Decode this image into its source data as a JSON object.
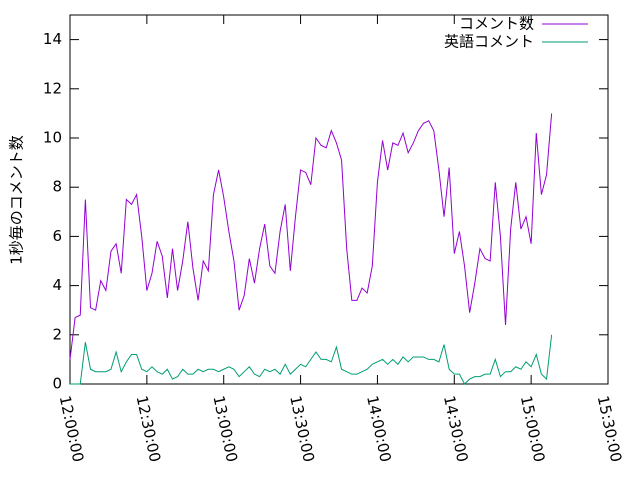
{
  "chart_data": {
    "type": "line",
    "y_label": "1秒毎のコメント数",
    "x": [
      "12:00:00",
      "12:02:00",
      "12:04:00",
      "12:06:00",
      "12:08:00",
      "12:10:00",
      "12:12:00",
      "12:14:00",
      "12:16:00",
      "12:18:00",
      "12:20:00",
      "12:22:00",
      "12:24:00",
      "12:26:00",
      "12:28:00",
      "12:30:00",
      "12:32:00",
      "12:34:00",
      "12:36:00",
      "12:38:00",
      "12:40:00",
      "12:42:00",
      "12:44:00",
      "12:46:00",
      "12:48:00",
      "12:50:00",
      "12:52:00",
      "12:54:00",
      "12:56:00",
      "12:58:00",
      "13:00:00",
      "13:02:00",
      "13:04:00",
      "13:06:00",
      "13:08:00",
      "13:10:00",
      "13:12:00",
      "13:14:00",
      "13:16:00",
      "13:18:00",
      "13:20:00",
      "13:22:00",
      "13:24:00",
      "13:26:00",
      "13:28:00",
      "13:30:00",
      "13:32:00",
      "13:34:00",
      "13:36:00",
      "13:38:00",
      "13:40:00",
      "13:42:00",
      "13:44:00",
      "13:46:00",
      "13:48:00",
      "13:50:00",
      "13:52:00",
      "13:54:00",
      "13:56:00",
      "13:58:00",
      "14:00:00",
      "14:02:00",
      "14:04:00",
      "14:06:00",
      "14:08:00",
      "14:10:00",
      "14:12:00",
      "14:14:00",
      "14:16:00",
      "14:18:00",
      "14:20:00",
      "14:22:00",
      "14:24:00",
      "14:26:00",
      "14:28:00",
      "14:30:00",
      "14:32:00",
      "14:34:00",
      "14:36:00",
      "14:38:00",
      "14:40:00",
      "14:42:00",
      "14:44:00",
      "14:46:00",
      "14:48:00",
      "14:50:00",
      "14:52:00",
      "14:54:00",
      "14:56:00",
      "14:58:00",
      "15:00:00",
      "15:02:00",
      "15:04:00",
      "15:06:00",
      "15:08:00"
    ],
    "series": [
      {
        "name": "コメント数",
        "color": "#9400d3",
        "values": [
          1.0,
          2.7,
          2.8,
          7.5,
          3.1,
          3.0,
          4.2,
          3.8,
          5.4,
          5.7,
          4.5,
          7.5,
          7.3,
          7.7,
          6.0,
          3.8,
          4.5,
          5.8,
          5.2,
          3.5,
          5.5,
          3.8,
          5.0,
          6.6,
          4.7,
          3.4,
          5.0,
          4.6,
          7.7,
          8.7,
          7.6,
          6.2,
          5.0,
          3.0,
          3.6,
          5.1,
          4.1,
          5.5,
          6.5,
          4.8,
          4.5,
          6.2,
          7.3,
          4.6,
          6.8,
          8.7,
          8.6,
          8.1,
          10.0,
          9.7,
          9.6,
          10.3,
          9.8,
          9.1,
          5.5,
          3.4,
          3.4,
          3.9,
          3.7,
          4.8,
          8.2,
          9.9,
          8.7,
          9.8,
          9.7,
          10.2,
          9.4,
          9.8,
          10.3,
          10.6,
          10.7,
          10.3,
          8.7,
          6.8,
          8.8,
          5.3,
          6.2,
          4.8,
          2.9,
          4.1,
          5.5,
          5.1,
          5.0,
          8.2,
          6.0,
          2.4,
          6.3,
          8.2,
          6.3,
          6.8,
          5.7,
          10.2,
          7.7,
          8.5,
          11.0
        ]
      },
      {
        "name": "英語コメント",
        "color": "#009e73",
        "values": [
          0,
          0,
          0,
          1.7,
          0.6,
          0.5,
          0.5,
          0.5,
          0.6,
          1.3,
          0.5,
          0.9,
          1.2,
          1.2,
          0.6,
          0.5,
          0.7,
          0.5,
          0.4,
          0.6,
          0.2,
          0.3,
          0.6,
          0.4,
          0.4,
          0.6,
          0.5,
          0.6,
          0.6,
          0.5,
          0.6,
          0.7,
          0.6,
          0.3,
          0.5,
          0.7,
          0.4,
          0.3,
          0.6,
          0.5,
          0.6,
          0.4,
          0.8,
          0.4,
          0.6,
          0.8,
          0.7,
          1.0,
          1.3,
          1.0,
          1.0,
          0.9,
          1.5,
          0.6,
          0.5,
          0.4,
          0.4,
          0.5,
          0.6,
          0.8,
          0.9,
          1.0,
          0.8,
          1.0,
          0.8,
          1.1,
          0.9,
          1.1,
          1.1,
          1.1,
          1.0,
          1.0,
          0.9,
          1.6,
          0.6,
          0.4,
          0.4,
          0.0,
          0.2,
          0.3,
          0.3,
          0.4,
          0.4,
          1.0,
          0.3,
          0.5,
          0.5,
          0.7,
          0.6,
          0.9,
          0.7,
          1.2,
          0.4,
          0.2,
          2.0
        ]
      }
    ],
    "xlim": [
      "12:00:00",
      "15:30:00"
    ],
    "xticks": [
      "12:00:00",
      "12:30:00",
      "13:00:00",
      "13:30:00",
      "14:00:00",
      "14:30:00",
      "15:00:00",
      "15:30:00"
    ],
    "ylim": [
      0,
      15
    ],
    "yticks": [
      0,
      2,
      4,
      6,
      8,
      10,
      12,
      14
    ],
    "legend": "top-right"
  }
}
